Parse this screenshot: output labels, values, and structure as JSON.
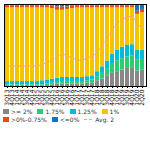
{
  "chart_data": {
    "type": "bar",
    "stacked": true,
    "categories": [
      "3Q13",
      "4Q13",
      "1Q14",
      "2Q14",
      "3Q14",
      "4Q14",
      "1Q15",
      "2Q15",
      "3Q15",
      "4Q15",
      "1Q16",
      "2Q16",
      "3Q16",
      "4Q16",
      "1Q17",
      "2Q17",
      "3Q17",
      "4Q17",
      "1Q18",
      "2Q18",
      "3Q18",
      "4Q18",
      "1Q19",
      "2Q19",
      "3Q19",
      "4Q19",
      "1Q20",
      "2Q20"
    ],
    "series": [
      {
        "name": ">= 2%",
        "color": "#888888",
        "values": [
          1,
          1,
          1,
          1,
          1,
          1,
          1,
          1,
          1,
          2,
          3,
          3,
          3,
          3,
          3,
          3,
          4,
          4,
          7,
          9,
          13,
          16,
          18,
          20,
          22,
          23,
          19,
          20
        ]
      },
      {
        "name": "1.75%",
        "color": "#2ECC71",
        "values": [
          1,
          1,
          1,
          1,
          1,
          1,
          1,
          1,
          2,
          2,
          2,
          3,
          3,
          3,
          3,
          3,
          3,
          4,
          5,
          7,
          8,
          11,
          13,
          14,
          14,
          14,
          13,
          13
        ]
      },
      {
        "name": "1.25%",
        "color": "#00BCD4",
        "values": [
          4,
          4,
          4,
          4,
          4,
          4,
          4,
          5,
          5,
          5,
          5,
          5,
          5,
          5,
          5,
          5,
          5,
          5,
          6,
          8,
          10,
          12,
          13,
          14,
          14,
          14,
          12,
          11
        ]
      },
      {
        "name": "1%",
        "color": "#F5C400",
        "values": [
          90,
          90,
          90,
          90,
          90,
          90,
          90,
          89,
          88,
          86,
          83,
          82,
          83,
          84,
          85,
          85,
          84,
          83,
          78,
          72,
          65,
          57,
          52,
          48,
          46,
          45,
          44,
          46
        ]
      },
      {
        "name": ">0%-0.75%",
        "color": "#E84B1A",
        "values": [
          2,
          2,
          2,
          2,
          2,
          2,
          2,
          2,
          2,
          3,
          4,
          4,
          3,
          3,
          2,
          2,
          2,
          2,
          2,
          2,
          2,
          2,
          2,
          2,
          2,
          2,
          4,
          4
        ]
      },
      {
        "name": "<=0%",
        "color": "#1A6FBF",
        "values": [
          2,
          2,
          2,
          2,
          2,
          2,
          2,
          2,
          2,
          2,
          3,
          3,
          3,
          2,
          2,
          2,
          2,
          2,
          2,
          2,
          2,
          2,
          2,
          2,
          2,
          2,
          8,
          6
        ]
      },
      {
        "name": "Avg. 2",
        "type": "line",
        "line_style": "dashed",
        "color": "#FF9999",
        "values": [
          25,
          25,
          25,
          25,
          25,
          25,
          25,
          27,
          30,
          32,
          37,
          40,
          37,
          35,
          32,
          32,
          35,
          37,
          42,
          50,
          60,
          70,
          77,
          82,
          85,
          86,
          75,
          72
        ]
      }
    ],
    "ylim": [
      0,
      100
    ],
    "yticks": [],
    "tick_labels": "x",
    "grid": false,
    "legend": "bottom"
  }
}
